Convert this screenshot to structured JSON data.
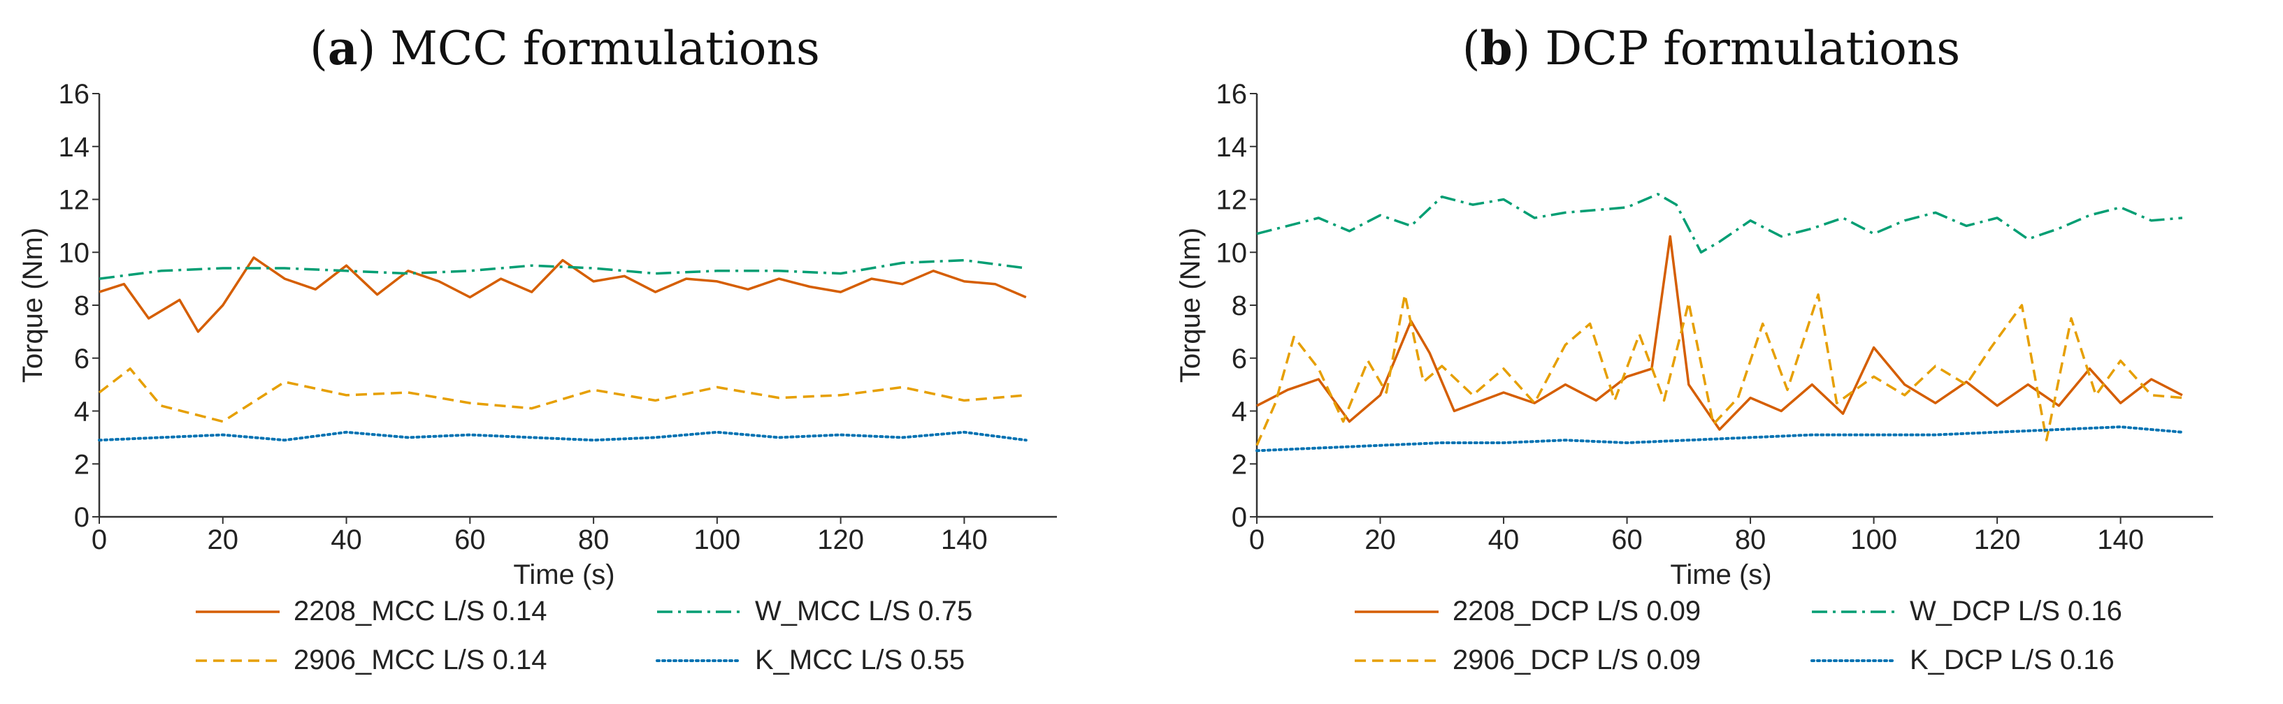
{
  "chart_data": [
    {
      "type": "line",
      "title_prefix": "(",
      "title_bold": "a",
      "title_rest": ") MCC formulations",
      "xlabel": "Time (s)",
      "ylabel": "Torque (Nm)",
      "xlim": [
        0,
        155
      ],
      "ylim": [
        0,
        16
      ],
      "xticks": [
        0,
        20,
        40,
        60,
        80,
        100,
        120,
        140
      ],
      "yticks": [
        0,
        2,
        4,
        6,
        8,
        10,
        12,
        14,
        16
      ],
      "grid": false,
      "legend_position": "bottom",
      "series": [
        {
          "name": "2208_MCC L/S 0.14",
          "color": "#D55E00",
          "style": "solid",
          "x": [
            0,
            4,
            8,
            13,
            16,
            20,
            25,
            30,
            35,
            40,
            45,
            50,
            55,
            60,
            65,
            70,
            75,
            80,
            85,
            90,
            95,
            100,
            105,
            110,
            115,
            120,
            125,
            130,
            135,
            140,
            145,
            150
          ],
          "y": [
            8.5,
            8.8,
            7.5,
            8.2,
            7.0,
            8.0,
            9.8,
            9.0,
            8.6,
            9.5,
            8.4,
            9.3,
            8.9,
            8.3,
            9.0,
            8.5,
            9.7,
            8.9,
            9.1,
            8.5,
            9.0,
            8.9,
            8.6,
            9.0,
            8.7,
            8.5,
            9.0,
            8.8,
            9.3,
            8.9,
            8.8,
            8.3
          ]
        },
        {
          "name": "W_MCC L/S 0.75",
          "color": "#009E73",
          "style": "dashdot",
          "x": [
            0,
            10,
            20,
            30,
            40,
            50,
            60,
            70,
            80,
            90,
            100,
            110,
            120,
            130,
            140,
            150
          ],
          "y": [
            9.0,
            9.3,
            9.4,
            9.4,
            9.3,
            9.2,
            9.3,
            9.5,
            9.4,
            9.2,
            9.3,
            9.3,
            9.2,
            9.6,
            9.7,
            9.4
          ]
        },
        {
          "name": "2906_MCC L/S 0.14",
          "color": "#E69F00",
          "style": "dashed",
          "x": [
            0,
            5,
            10,
            20,
            30,
            40,
            50,
            60,
            70,
            80,
            90,
            100,
            110,
            120,
            130,
            140,
            150
          ],
          "y": [
            4.7,
            5.6,
            4.2,
            3.6,
            5.1,
            4.6,
            4.7,
            4.3,
            4.1,
            4.8,
            4.4,
            4.9,
            4.5,
            4.6,
            4.9,
            4.4,
            4.6
          ]
        },
        {
          "name": "K_MCC L/S 0.55",
          "color": "#0072B2",
          "style": "dotted",
          "x": [
            0,
            10,
            20,
            30,
            40,
            50,
            60,
            70,
            80,
            90,
            100,
            110,
            120,
            130,
            140,
            150
          ],
          "y": [
            2.9,
            3.0,
            3.1,
            2.9,
            3.2,
            3.0,
            3.1,
            3.0,
            2.9,
            3.0,
            3.2,
            3.0,
            3.1,
            3.0,
            3.2,
            2.9
          ]
        }
      ]
    },
    {
      "type": "line",
      "title_prefix": "(",
      "title_bold": "b",
      "title_rest": ") DCP formulations",
      "xlabel": "Time (s)",
      "ylabel": "Torque (Nm)",
      "xlim": [
        0,
        155
      ],
      "ylim": [
        0,
        16
      ],
      "xticks": [
        0,
        20,
        40,
        60,
        80,
        100,
        120,
        140
      ],
      "yticks": [
        0,
        2,
        4,
        6,
        8,
        10,
        12,
        14,
        16
      ],
      "grid": false,
      "legend_position": "bottom",
      "series": [
        {
          "name": "2208_DCP L/S 0.09",
          "color": "#D55E00",
          "style": "solid",
          "x": [
            0,
            5,
            10,
            15,
            20,
            25,
            28,
            32,
            40,
            45,
            50,
            55,
            60,
            64,
            67,
            70,
            75,
            80,
            85,
            90,
            95,
            100,
            105,
            110,
            115,
            120,
            125,
            130,
            135,
            140,
            145,
            150
          ],
          "y": [
            4.2,
            4.8,
            5.2,
            3.6,
            4.6,
            7.4,
            6.2,
            4.0,
            4.7,
            4.3,
            5.0,
            4.4,
            5.3,
            5.6,
            10.6,
            5.0,
            3.3,
            4.5,
            4.0,
            5.0,
            3.9,
            6.4,
            5.0,
            4.3,
            5.1,
            4.2,
            5.0,
            4.2,
            5.6,
            4.3,
            5.2,
            4.6
          ]
        },
        {
          "name": "W_DCP L/S 0.16",
          "color": "#009E73",
          "style": "dashdot",
          "x": [
            0,
            5,
            10,
            15,
            20,
            25,
            30,
            35,
            40,
            45,
            50,
            55,
            60,
            65,
            68,
            72,
            75,
            80,
            85,
            90,
            95,
            100,
            105,
            110,
            115,
            120,
            125,
            130,
            135,
            140,
            145,
            150
          ],
          "y": [
            10.7,
            11.0,
            11.3,
            10.8,
            11.4,
            11.0,
            12.1,
            11.8,
            12.0,
            11.3,
            11.5,
            11.6,
            11.7,
            12.2,
            11.8,
            10.0,
            10.4,
            11.2,
            10.6,
            10.9,
            11.3,
            10.7,
            11.2,
            11.5,
            11.0,
            11.3,
            10.5,
            10.9,
            11.4,
            11.7,
            11.2,
            11.3
          ]
        },
        {
          "name": "2906_DCP L/S 0.09",
          "color": "#E69F00",
          "style": "dashed",
          "x": [
            0,
            3,
            6,
            10,
            14,
            18,
            21,
            24,
            27,
            30,
            35,
            40,
            45,
            50,
            54,
            58,
            62,
            66,
            70,
            74,
            78,
            82,
            86,
            91,
            94,
            100,
            105,
            110,
            115,
            119,
            124,
            128,
            132,
            136,
            140,
            145,
            150
          ],
          "y": [
            2.7,
            4.3,
            6.8,
            5.6,
            3.6,
            5.9,
            4.7,
            8.4,
            5.1,
            5.7,
            4.6,
            5.6,
            4.3,
            6.5,
            7.3,
            4.4,
            6.9,
            4.4,
            8.1,
            3.5,
            4.5,
            7.3,
            4.8,
            8.4,
            4.3,
            5.3,
            4.6,
            5.7,
            5.0,
            6.4,
            8.0,
            2.9,
            7.5,
            4.6,
            5.9,
            4.6,
            4.5
          ]
        },
        {
          "name": "K_DCP L/S 0.16",
          "color": "#0072B2",
          "style": "dotted",
          "x": [
            0,
            10,
            20,
            30,
            40,
            50,
            60,
            70,
            80,
            90,
            100,
            110,
            120,
            130,
            140,
            150
          ],
          "y": [
            2.5,
            2.6,
            2.7,
            2.8,
            2.8,
            2.9,
            2.8,
            2.9,
            3.0,
            3.1,
            3.1,
            3.1,
            3.2,
            3.3,
            3.4,
            3.2
          ]
        }
      ]
    }
  ]
}
